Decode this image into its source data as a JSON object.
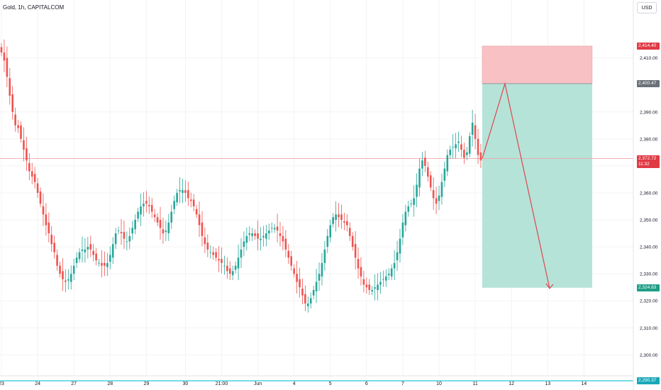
{
  "header": {
    "symbol": "Gold, 1h, CAPITALCOM",
    "currency": "USD"
  },
  "colors": {
    "up": "#26a69a",
    "down": "#ef5350",
    "stop_zone": "#f8c1c4",
    "target_zone": "#b5e3d8",
    "arrow": "#e0454f",
    "current_line": "#f2a5aa",
    "support_line": "#29c5d6",
    "grid": "#f3f3f5"
  },
  "price_tags": {
    "stop": "2,414.40",
    "entry": "2,400.47",
    "current": "2,372.72",
    "countdown": "11:32",
    "target": "2,324.83",
    "support": "2,290.37"
  },
  "chart_data": {
    "type": "candlestick",
    "ylim": [
      2289,
      2419
    ],
    "y_ticks": [
      "2,300.00",
      "2,310.00",
      "2,320.00",
      "2,330.00",
      "2,340.00",
      "2,350.00",
      "2,360.00",
      "2,370.00",
      "2,380.00",
      "2,390.00",
      "2,410.00"
    ],
    "y_tick_values": [
      2300,
      2310,
      2320,
      2330,
      2340,
      2350,
      2360,
      2370,
      2380,
      2390,
      2410
    ],
    "x_ticks": [
      "23",
      "24",
      "27",
      "28",
      "29",
      "30",
      "21:00",
      "Jun",
      "4",
      "5",
      "6",
      "7",
      "10",
      "11",
      "12",
      "13",
      "14"
    ],
    "x_tick_bars": [
      0,
      13,
      26,
      39,
      52,
      66,
      79,
      92,
      105,
      118,
      131,
      144,
      157,
      170,
      183,
      196,
      209
    ],
    "bars_total": 235,
    "closes": [
      2412,
      2409,
      2403,
      2396,
      2390,
      2385,
      2384,
      2380,
      2376,
      2372,
      2368,
      2366,
      2364,
      2360,
      2356,
      2352,
      2348,
      2345,
      2341,
      2338,
      2333,
      2330,
      2328,
      2327,
      2328,
      2330,
      2333,
      2336,
      2338,
      2339,
      2339,
      2340,
      2339,
      2337,
      2335,
      2334,
      2333,
      2333,
      2334,
      2337,
      2341,
      2345,
      2346,
      2345,
      2343,
      2342,
      2344,
      2347,
      2350,
      2353,
      2355,
      2356,
      2356,
      2355,
      2353,
      2351,
      2349,
      2347,
      2345,
      2346,
      2349,
      2353,
      2357,
      2360,
      2361,
      2361,
      2360,
      2358,
      2357,
      2355,
      2352,
      2348,
      2344,
      2341,
      2339,
      2338,
      2337,
      2336,
      2335,
      2334,
      2333,
      2331,
      2330,
      2331,
      2333,
      2336,
      2339,
      2342,
      2344,
      2345,
      2345,
      2344,
      2343,
      2343,
      2344,
      2345,
      2346,
      2347,
      2347,
      2346,
      2344,
      2342,
      2339,
      2336,
      2333,
      2330,
      2327,
      2325,
      2322,
      2319,
      2319,
      2321,
      2324,
      2327,
      2330,
      2334,
      2339,
      2344,
      2348,
      2351,
      2352,
      2351,
      2350,
      2349,
      2348,
      2344,
      2340,
      2336,
      2332,
      2329,
      2326,
      2325,
      2324,
      2324,
      2325,
      2326,
      2327,
      2328,
      2329,
      2330,
      2332,
      2334,
      2338,
      2343,
      2349,
      2353,
      2355,
      2356,
      2358,
      2363,
      2369,
      2372,
      2370,
      2366,
      2362,
      2358,
      2356,
      2359,
      2364,
      2369,
      2374,
      2376,
      2377,
      2378,
      2379,
      2376,
      2373,
      2375,
      2381,
      2386,
      2380,
      2374,
      2372
    ]
  }
}
